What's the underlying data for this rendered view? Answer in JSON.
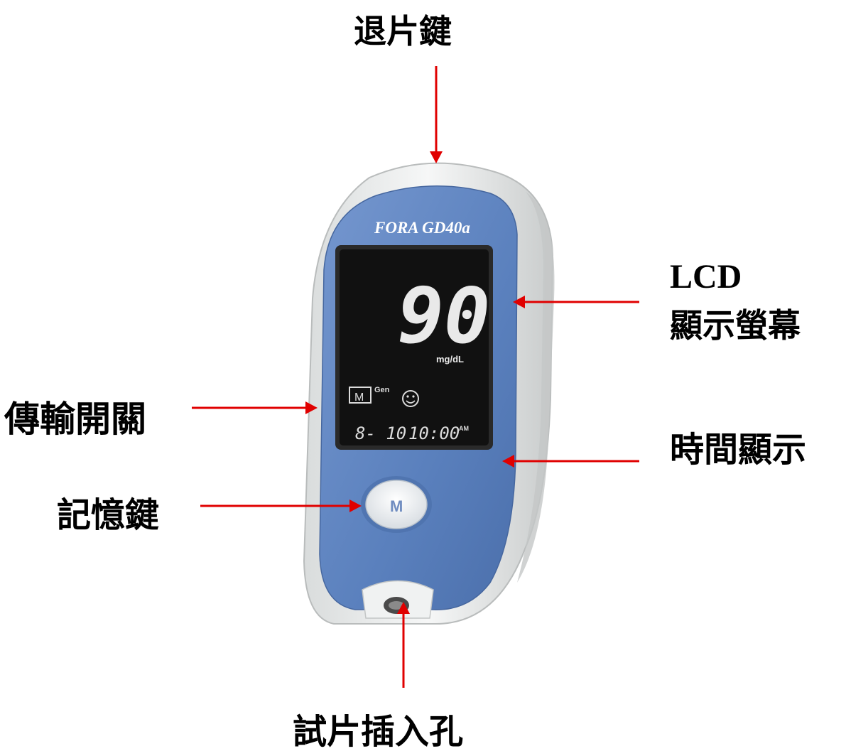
{
  "labels": {
    "eject_button": "退片鍵",
    "lcd_en": "LCD",
    "lcd_zh": "顯示螢幕",
    "transmission_switch": "傳輸開關",
    "time_display": "時間顯示",
    "memory_button": "記憶鍵",
    "strip_slot": "試片插入孔"
  },
  "device": {
    "brand": "FORA",
    "model": "GD40a",
    "reading": "90",
    "unit": "mg/dL",
    "memory_icon": "M",
    "gen_text": "Gen",
    "smiley_icon": "smiley-icon",
    "date": "8- 10",
    "time": "10:00",
    "ampm": "AM",
    "button_label": "M"
  },
  "colors": {
    "arrow": "#e00000",
    "body_blue": "#5f86c2",
    "shell": "#eef0f0",
    "screen": "#111111"
  }
}
